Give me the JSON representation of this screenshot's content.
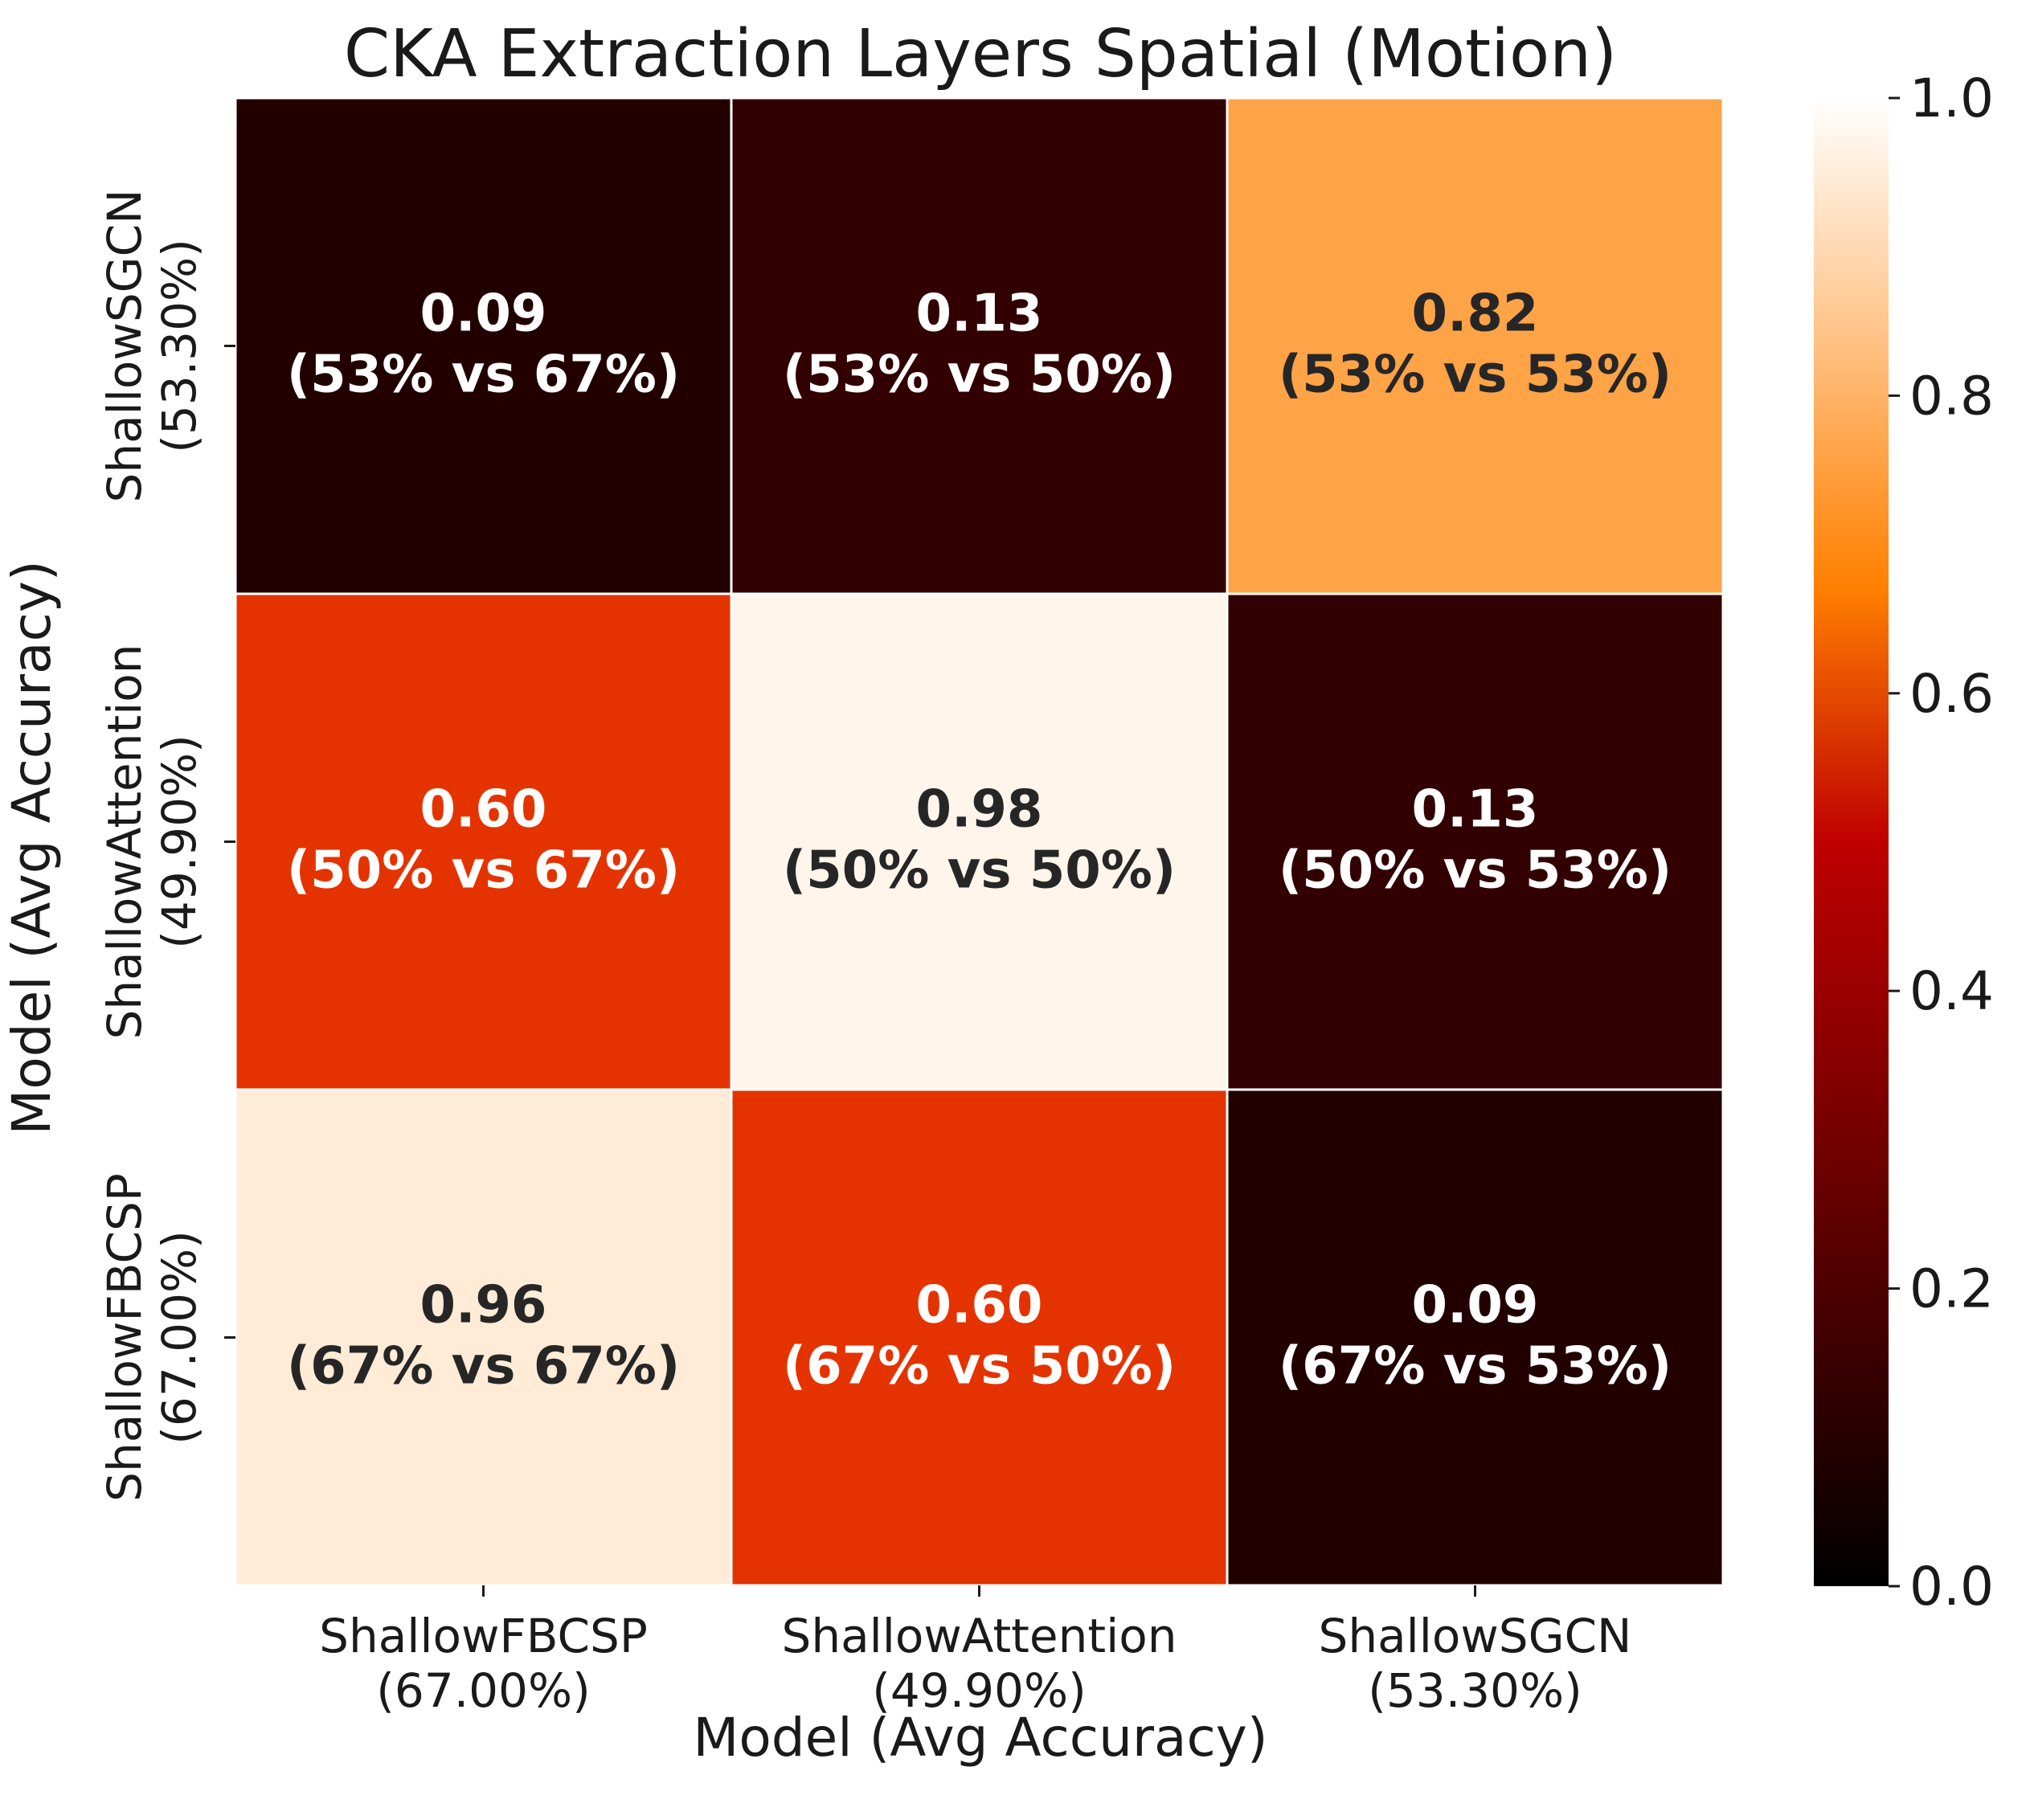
{
  "chart_data": {
    "type": "heatmap",
    "title": "CKA Extraction Layers Spatial (Motion)",
    "xlabel": "Model (Avg Accuracy)",
    "ylabel": "Model (Avg Accuracy)",
    "x_categories": [
      "ShallowFBCSP\n(67.00%)",
      "ShallowAttention\n(49.90%)",
      "ShallowSGCN\n(53.30%)"
    ],
    "y_categories": [
      "ShallowSGCN\n(53.30%)",
      "ShallowAttention\n(49.90%)",
      "ShallowFBCSP\n(67.00%)"
    ],
    "values": [
      [
        0.09,
        0.13,
        0.82
      ],
      [
        0.6,
        0.98,
        0.13
      ],
      [
        0.96,
        0.6,
        0.09
      ]
    ],
    "cell_annotations": [
      [
        "(53% vs 67%)",
        "(53% vs 50%)",
        "(53% vs 53%)"
      ],
      [
        "(50% vs 67%)",
        "(50% vs 50%)",
        "(50% vs 53%)"
      ],
      [
        "(67% vs 67%)",
        "(67% vs 50%)",
        "(67% vs 53%)"
      ]
    ],
    "colormap": "gist_heat",
    "colorbar": {
      "range": [
        0.0,
        1.0
      ],
      "ticks": [
        "0.0",
        "0.2",
        "0.4",
        "0.6",
        "0.8",
        "1.0"
      ],
      "position": "right"
    },
    "colors": {
      "dark_text": "#262626",
      "light_text": "#ffffff"
    }
  }
}
